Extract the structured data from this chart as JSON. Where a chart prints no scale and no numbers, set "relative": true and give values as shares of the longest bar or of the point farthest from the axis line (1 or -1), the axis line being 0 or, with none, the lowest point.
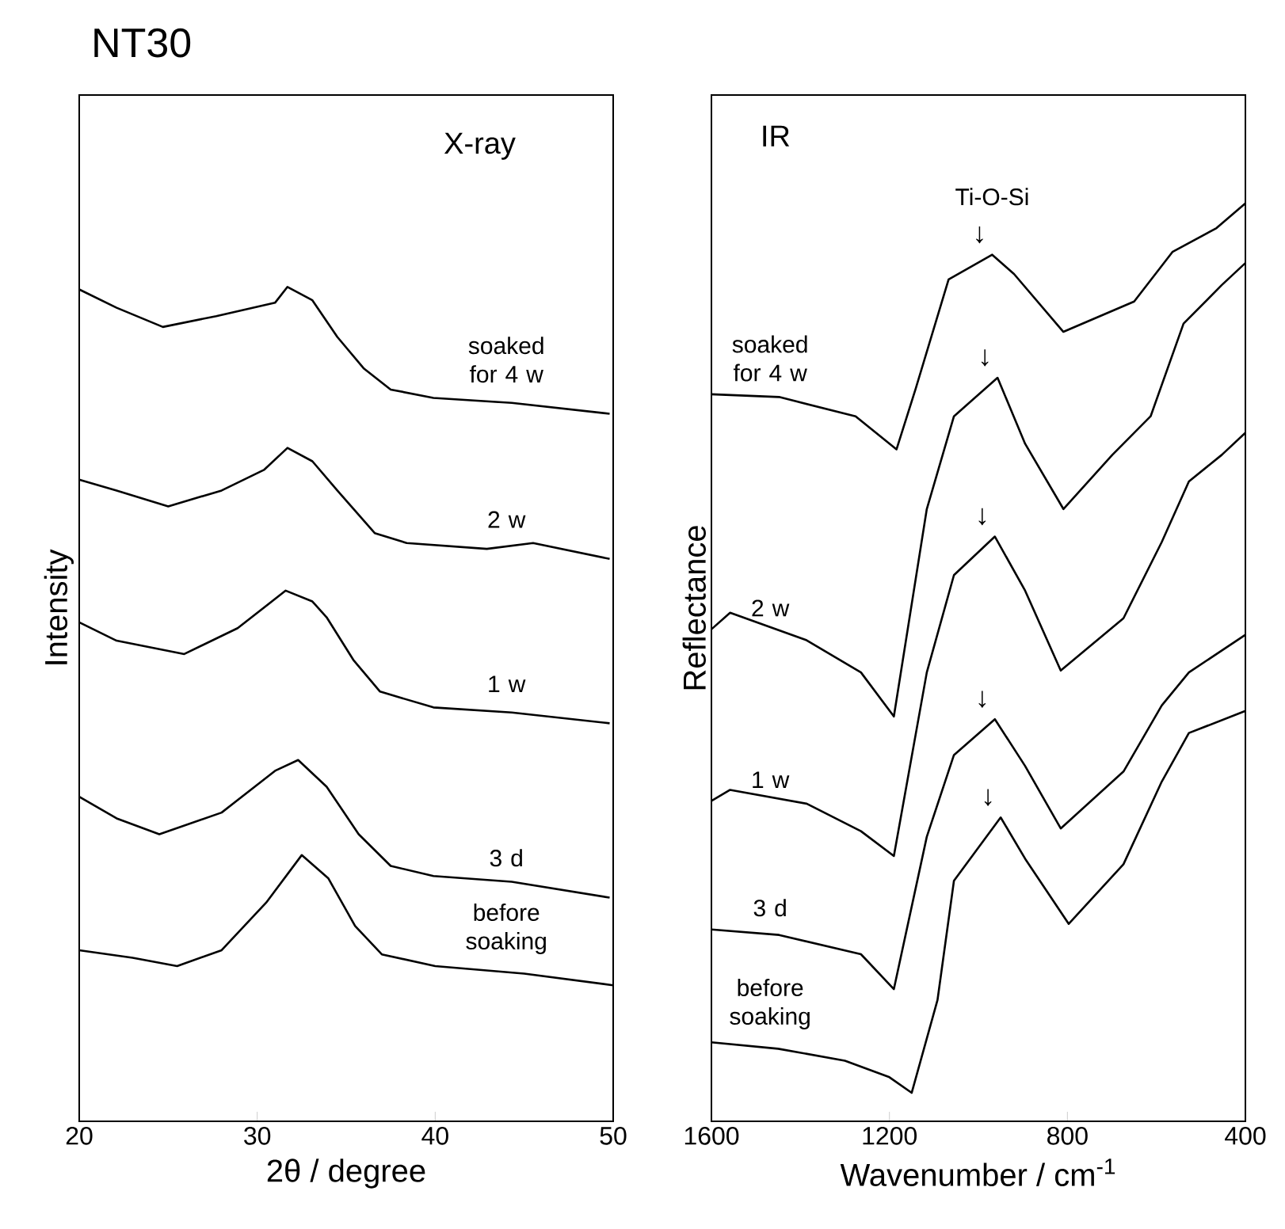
{
  "chart_data": [
    {
      "type": "line",
      "title": "NT30",
      "subtitle": "X-ray",
      "xlabel": "2θ / degree",
      "ylabel": "Intensity",
      "relative": true,
      "xlim": [
        20,
        50
      ],
      "xticks": [
        20,
        30,
        40,
        50
      ],
      "series": [
        {
          "name": "soaked for 4 w",
          "color": "#000000",
          "x": [
            20.0,
            22.1,
            24.7,
            27.7,
            31.0,
            31.7,
            33.1,
            34.5,
            36.0,
            37.5,
            39.9,
            44.3,
            49.8
          ],
          "values": [
            0.997,
            0.975,
            0.952,
            0.965,
            0.981,
            1.0,
            0.984,
            0.94,
            0.902,
            0.877,
            0.867,
            0.861,
            0.848
          ]
        },
        {
          "name": "2 w",
          "color": "#000000",
          "x": [
            20.0,
            22.1,
            25.0,
            28.0,
            30.4,
            31.7,
            33.1,
            34.5,
            36.6,
            38.4,
            42.9,
            45.5,
            49.8
          ],
          "values": [
            0.769,
            0.756,
            0.737,
            0.756,
            0.781,
            0.807,
            0.791,
            0.756,
            0.705,
            0.693,
            0.686,
            0.693,
            0.674
          ]
        },
        {
          "name": "1 w",
          "color": "#000000",
          "x": [
            20.0,
            22.1,
            25.9,
            28.9,
            31.6,
            33.1,
            33.9,
            35.4,
            36.9,
            39.9,
            44.3,
            49.8
          ],
          "values": [
            0.598,
            0.576,
            0.56,
            0.591,
            0.636,
            0.623,
            0.604,
            0.553,
            0.515,
            0.496,
            0.49,
            0.477
          ]
        },
        {
          "name": "3 d",
          "color": "#000000",
          "x": [
            20.0,
            22.1,
            24.5,
            28.0,
            31.0,
            32.3,
            33.9,
            35.7,
            37.5,
            39.9,
            44.3,
            49.8
          ],
          "values": [
            0.389,
            0.363,
            0.344,
            0.37,
            0.42,
            0.433,
            0.401,
            0.344,
            0.306,
            0.294,
            0.287,
            0.268
          ]
        },
        {
          "name": "before soaking",
          "color": "#000000",
          "x": [
            20.0,
            23.0,
            25.5,
            28.0,
            30.5,
            32.5,
            34.0,
            35.5,
            37.0,
            40.0,
            45.0,
            50.0
          ],
          "values": [
            0.205,
            0.196,
            0.186,
            0.205,
            0.262,
            0.319,
            0.291,
            0.234,
            0.2,
            0.186,
            0.177,
            0.163
          ]
        }
      ]
    },
    {
      "type": "line",
      "subtitle": "IR",
      "xlabel": "Wavenumber / cm$^{-1}$",
      "ylabel": "Reflectance",
      "relative": true,
      "xlim": [
        1600,
        400
      ],
      "xticks": [
        1600,
        1200,
        800,
        400
      ],
      "annotations": [
        "Ti-O-Si",
        "↓",
        "↓",
        "↓",
        "↓",
        "↓"
      ],
      "series": [
        {
          "name": "soaked for 4 w",
          "color": "#000000",
          "x": [
            1600,
            1448,
            1276,
            1184,
            1141,
            1067,
            969,
            920,
            809,
            650,
            564,
            465,
            400
          ],
          "values": [
            0.792,
            0.789,
            0.768,
            0.732,
            0.798,
            0.917,
            0.944,
            0.923,
            0.86,
            0.893,
            0.947,
            0.973,
            1.0
          ]
        },
        {
          "name": "2 w",
          "color": "#000000",
          "x": [
            1600,
            1558,
            1386,
            1264,
            1190,
            1116,
            1055,
            957,
            895,
            809,
            699,
            613,
            539,
            453,
            400
          ],
          "values": [
            0.536,
            0.554,
            0.524,
            0.489,
            0.441,
            0.667,
            0.768,
            0.81,
            0.738,
            0.667,
            0.726,
            0.768,
            0.869,
            0.911,
            0.935
          ]
        },
        {
          "name": "1 w",
          "color": "#000000",
          "x": [
            1600,
            1558,
            1386,
            1264,
            1190,
            1116,
            1055,
            963,
            895,
            815,
            674,
            588,
            527,
            453,
            400
          ],
          "values": [
            0.349,
            0.361,
            0.346,
            0.316,
            0.289,
            0.489,
            0.595,
            0.637,
            0.578,
            0.491,
            0.548,
            0.631,
            0.697,
            0.726,
            0.75
          ]
        },
        {
          "name": "3 d",
          "color": "#000000",
          "x": [
            1600,
            1448,
            1264,
            1190,
            1116,
            1055,
            963,
            895,
            815,
            674,
            588,
            527,
            400
          ],
          "values": [
            0.209,
            0.203,
            0.182,
            0.144,
            0.31,
            0.399,
            0.438,
            0.387,
            0.319,
            0.381,
            0.453,
            0.489,
            0.53
          ]
        },
        {
          "name": "before soaking",
          "color": "#000000",
          "x": [
            1600,
            1450,
            1300,
            1200,
            1150,
            1092,
            1055,
            950,
            895,
            797,
            674,
            588,
            527,
            400
          ],
          "values": [
            0.086,
            0.079,
            0.066,
            0.048,
            0.031,
            0.132,
            0.262,
            0.331,
            0.286,
            0.215,
            0.28,
            0.37,
            0.423,
            0.447
          ]
        }
      ]
    }
  ]
}
